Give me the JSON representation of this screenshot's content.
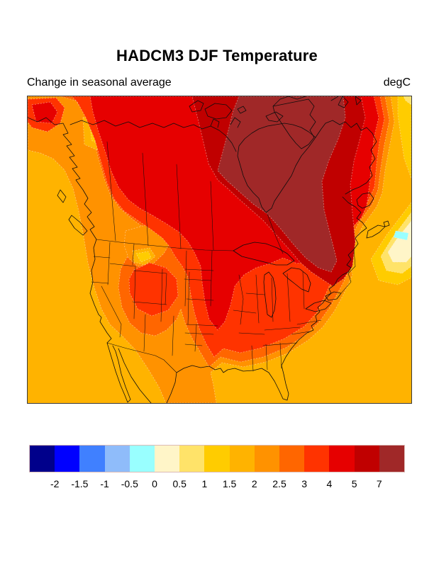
{
  "header": {
    "title": "HADCM3 DJF Temperature",
    "subtitle_left": "Change in seasonal average",
    "units": "degC"
  },
  "chart_data": {
    "type": "heatmap",
    "subtype": "filled_contour_map",
    "title": "HADCM3 DJF Temperature",
    "subtitle": "Change in seasonal average",
    "units": "degC",
    "region": "North America",
    "levels": [
      "-2",
      "-1.5",
      "-1",
      "-0.5",
      "0",
      "0.5",
      "1",
      "1.5",
      "2",
      "2.5",
      "3",
      "4",
      "5",
      "7"
    ],
    "palette": [
      "#00008B",
      "#0000FF",
      "#4080FF",
      "#8FBCFA",
      "#99FFFF",
      "#FFF5C8",
      "#FFE369",
      "#FFCC00",
      "#FFB300",
      "#FF9200",
      "#FF6600",
      "#FF3300",
      "#E60000",
      "#C00000",
      "#A02828"
    ],
    "legend_position": "bottom",
    "readings": [
      {
        "area": "Hudson Bay, Foxe Basin and Quebec-Labrador interior",
        "change_degC": "> 7"
      },
      {
        "area": "Canadian Arctic Archipelago / Baffin Island fringe",
        "change_degC": "5 to 7"
      },
      {
        "area": "Northern and central Canada, top of map",
        "change_degC": "4 to 5"
      },
      {
        "area": "Prairies wedge down through Dakotas-Minnesota-Iowa",
        "change_degC": "4 to 5"
      },
      {
        "area": "Great Lakes, Northeast US, Utah-Wyoming blob",
        "change_degC": "3 to 4"
      },
      {
        "area": "Great Basin, central US, Appalachians band",
        "change_degC": "2.5 to 3"
      },
      {
        "area": "Most remaining land, near-coast waters",
        "change_degC": "2 to 2.5"
      },
      {
        "area": "Oceans, Gulf of Mexico, far-field background",
        "change_degC": "1.5 to 2"
      },
      {
        "area": "Yukon spot and Idaho spot",
        "change_degC": "1 to 1.5"
      },
      {
        "area": "Northwest Atlantic anomaly east of Nova Scotia",
        "change_degC": "-0.5 to 1 (cyan core -0.5 to 0)"
      }
    ]
  },
  "colorbar": {
    "labels": [
      "-2",
      "-1.5",
      "-1",
      "-0.5",
      "0",
      "0.5",
      "1",
      "1.5",
      "2",
      "2.5",
      "3",
      "4",
      "5",
      "7"
    ]
  }
}
